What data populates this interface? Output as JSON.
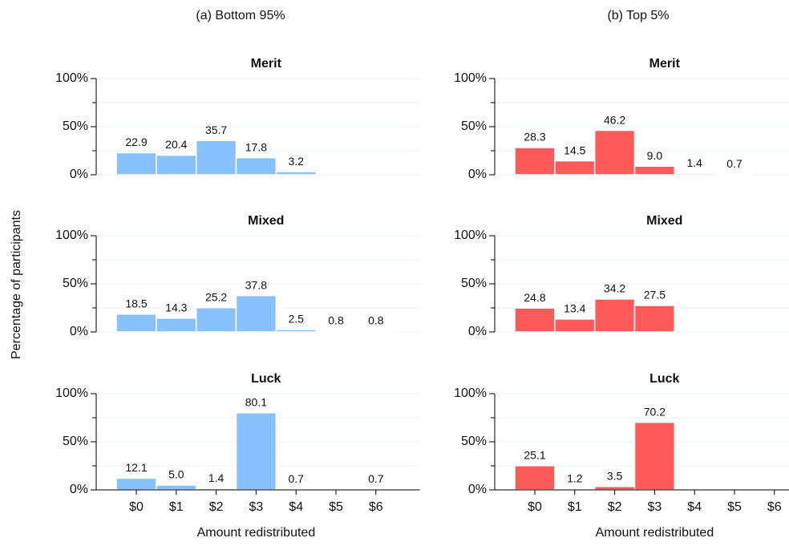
{
  "column_titles": [
    "(a) Bottom 95%",
    "(b) Top 5%"
  ],
  "ylabel": "Percentage of participants",
  "chart_data": [
    {
      "type": "bar",
      "title": "Merit",
      "color": "#87c1ff",
      "ylim": [
        0,
        100
      ],
      "yticks": [
        {
          "value": 0,
          "label": "0%"
        },
        {
          "value": 50,
          "label": "50%"
        },
        {
          "value": 100,
          "label": "100%"
        }
      ],
      "yminor": [
        25,
        75
      ],
      "grid": true,
      "values": [
        22.9,
        20.4,
        35.7,
        17.8,
        3.2,
        null,
        null
      ],
      "value_labels": [
        "22.9",
        "20.4",
        "35.7",
        "17.8",
        "3.2",
        null,
        null
      ]
    },
    {
      "type": "bar",
      "title": "Merit",
      "color": "#ff5a5a",
      "ylim": [
        0,
        100
      ],
      "yticks": [
        {
          "value": 0,
          "label": "0%"
        },
        {
          "value": 50,
          "label": "50%"
        },
        {
          "value": 100,
          "label": "100%"
        }
      ],
      "yminor": [
        25,
        75
      ],
      "grid": true,
      "values": [
        28.3,
        14.5,
        46.2,
        9.0,
        1.4,
        0.7,
        null
      ],
      "value_labels": [
        "28.3",
        "14.5",
        "46.2",
        "9.0",
        "1.4",
        "0.7",
        null
      ]
    },
    {
      "type": "bar",
      "title": "Mixed",
      "color": "#87c1ff",
      "ylim": [
        0,
        100
      ],
      "yticks": [
        {
          "value": 0,
          "label": "0%"
        },
        {
          "value": 50,
          "label": "50%"
        },
        {
          "value": 100,
          "label": "100%"
        }
      ],
      "yminor": [
        25,
        75
      ],
      "grid": true,
      "values": [
        18.5,
        14.3,
        25.2,
        37.8,
        2.5,
        0.8,
        0.8
      ],
      "value_labels": [
        "18.5",
        "14.3",
        "25.2",
        "37.8",
        "2.5",
        "0.8",
        "0.8"
      ]
    },
    {
      "type": "bar",
      "title": "Mixed",
      "color": "#ff5a5a",
      "ylim": [
        0,
        100
      ],
      "yticks": [
        {
          "value": 0,
          "label": "0%"
        },
        {
          "value": 50,
          "label": "50%"
        },
        {
          "value": 100,
          "label": "100%"
        }
      ],
      "yminor": [
        25,
        75
      ],
      "grid": true,
      "values": [
        24.8,
        13.4,
        34.2,
        27.5,
        null,
        null,
        null
      ],
      "value_labels": [
        "24.8",
        "13.4",
        "34.2",
        "27.5",
        null,
        null,
        null
      ]
    },
    {
      "type": "bar",
      "title": "Luck",
      "color": "#87c1ff",
      "ylim": [
        0,
        100
      ],
      "yticks": [
        {
          "value": 0,
          "label": "0%"
        },
        {
          "value": 50,
          "label": "50%"
        },
        {
          "value": 100,
          "label": "100%"
        }
      ],
      "yminor": [
        25,
        75
      ],
      "grid": true,
      "categories": [
        "$0",
        "$1",
        "$2",
        "$3",
        "$4",
        "$5",
        "$6"
      ],
      "xlabel": "Amount redistributed",
      "values": [
        12.1,
        5.0,
        1.4,
        80.1,
        0.7,
        null,
        0.7
      ],
      "value_labels": [
        "12.1",
        "5.0",
        "1.4",
        "80.1",
        "0.7",
        null,
        "0.7"
      ]
    },
    {
      "type": "bar",
      "title": "Luck",
      "color": "#ff5a5a",
      "ylim": [
        0,
        100
      ],
      "yticks": [
        {
          "value": 0,
          "label": "0%"
        },
        {
          "value": 50,
          "label": "50%"
        },
        {
          "value": 100,
          "label": "100%"
        }
      ],
      "yminor": [
        25,
        75
      ],
      "grid": true,
      "categories": [
        "$0",
        "$1",
        "$2",
        "$3",
        "$4",
        "$5",
        "$6"
      ],
      "xlabel": "Amount redistributed",
      "values": [
        25.1,
        1.2,
        3.5,
        70.2,
        null,
        null,
        null
      ],
      "value_labels": [
        "25.1",
        "1.2",
        "3.5",
        "70.2",
        null,
        null,
        null
      ]
    }
  ]
}
